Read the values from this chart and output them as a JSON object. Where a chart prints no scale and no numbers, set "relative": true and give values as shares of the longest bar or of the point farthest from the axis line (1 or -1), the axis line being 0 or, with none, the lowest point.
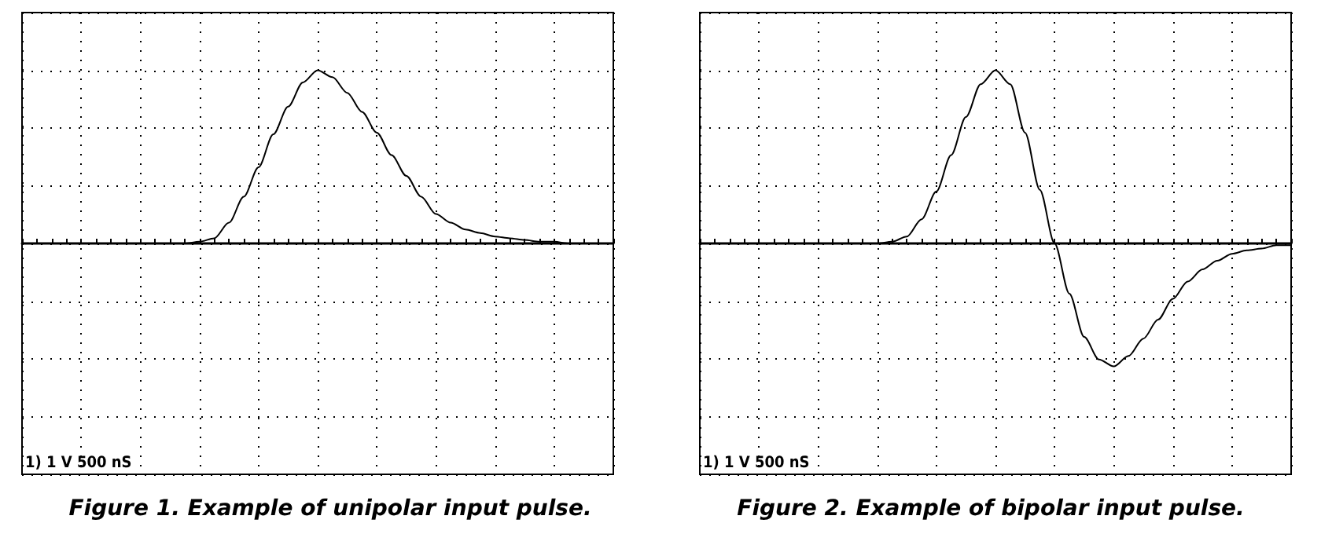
{
  "chart_data": [
    {
      "type": "line",
      "title": "Figure 1. Example of unipolar input pulse.",
      "annotations": [
        "1) 1 V 500 nS"
      ],
      "relative": true,
      "grid": true,
      "marker": "none",
      "line_style": "solid",
      "categories": [
        null,
        null,
        null,
        null,
        null,
        null,
        null,
        null,
        null,
        null,
        null,
        null,
        null,
        null,
        null,
        null,
        null,
        null,
        null,
        null,
        null,
        null,
        null,
        null,
        null,
        null,
        null,
        null,
        null,
        null,
        null,
        null,
        null,
        null,
        null,
        null,
        null,
        null,
        null,
        null,
        null
      ],
      "series": [
        {
          "color": "#000000",
          "values": [
            0,
            0,
            0,
            0,
            0,
            0,
            0,
            0,
            0,
            0,
            0,
            0,
            0.01,
            0.03,
            0.12,
            0.27,
            0.44,
            0.63,
            0.79,
            0.93,
            1,
            0.96,
            0.87,
            0.76,
            0.64,
            0.51,
            0.39,
            0.27,
            0.17,
            0.12,
            0.08,
            0.06,
            0.04,
            0.03,
            0.02,
            0.01,
            0.01,
            0,
            0,
            0,
            0
          ]
        }
      ]
    },
    {
      "type": "line",
      "title": "Figure 2. Example of bipolar input pulse.",
      "annotations": [
        "1) 1 V 500 nS"
      ],
      "relative": true,
      "grid": true,
      "marker": "none",
      "line_style": "solid",
      "categories": [
        null,
        null,
        null,
        null,
        null,
        null,
        null,
        null,
        null,
        null,
        null,
        null,
        null,
        null,
        null,
        null,
        null,
        null,
        null,
        null,
        null,
        null,
        null,
        null,
        null,
        null,
        null,
        null,
        null,
        null,
        null,
        null,
        null,
        null,
        null,
        null,
        null,
        null,
        null,
        null,
        null
      ],
      "series": [
        {
          "color": "#000000",
          "values": [
            0,
            0,
            0,
            0,
            0,
            0,
            0,
            0,
            0,
            0,
            0,
            0,
            0,
            0.01,
            0.04,
            0.14,
            0.3,
            0.51,
            0.73,
            0.92,
            1,
            0.92,
            0.64,
            0.31,
            0,
            -0.29,
            -0.54,
            -0.67,
            -0.71,
            -0.65,
            -0.55,
            -0.44,
            -0.32,
            -0.22,
            -0.15,
            -0.1,
            -0.06,
            -0.04,
            -0.03,
            -0.01,
            -0.01
          ]
        }
      ]
    }
  ]
}
